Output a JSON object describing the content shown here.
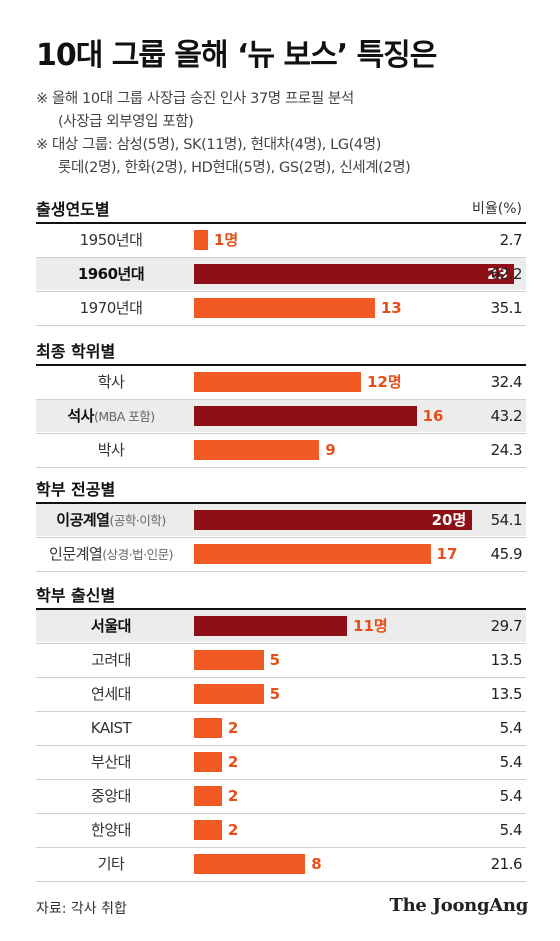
{
  "title": "10대 그룹 올해 ‘뉴 보스’ 특징은",
  "notes": [
    "※ 올해 10대 그룹 사장급 승진 인사 37명 프로필 분석",
    "(사장급 외부영입 포함)",
    "※ 대상 그룹: 삼성(5명), SK(11명), 현대차(4명), LG(4명)",
    "롯데(2명), 한화(2명), HD현대(5명), GS(2명), 신세계(2명)"
  ],
  "ratio_label": "비율(%)",
  "source": "자료: 각사 취합",
  "logo": "The JoongAng",
  "colors": {
    "bar": "#f15a22",
    "bar_highlight": "#8c1016",
    "row_highlight": "#ececec"
  },
  "chart_data": [
    {
      "type": "bar",
      "title": "출생연도별",
      "categories": [
        "1950년대",
        "1960년대",
        "1970년대"
      ],
      "sublabels": [
        "",
        "",
        ""
      ],
      "values": [
        1,
        23,
        13
      ],
      "value_labels": [
        "1명",
        "23",
        "13"
      ],
      "percent": [
        "2.7",
        "62.2",
        "35.1"
      ],
      "highlight": [
        false,
        true,
        false
      ],
      "label_inside": [
        false,
        true,
        false
      ]
    },
    {
      "type": "bar",
      "title": "최종 학위별",
      "categories": [
        "학사",
        "석사",
        "박사"
      ],
      "sublabels": [
        "",
        "(MBA 포함)",
        ""
      ],
      "values": [
        12,
        16,
        9
      ],
      "value_labels": [
        "12명",
        "16",
        "9"
      ],
      "percent": [
        "32.4",
        "43.2",
        "24.3"
      ],
      "highlight": [
        false,
        true,
        false
      ],
      "label_inside": [
        false,
        false,
        false
      ]
    },
    {
      "type": "bar",
      "title": "학부 전공별",
      "categories": [
        "이공계열",
        "인문계열"
      ],
      "sublabels": [
        "(공학·이학)",
        "(상경·법·인문)"
      ],
      "values": [
        20,
        17
      ],
      "value_labels": [
        "20명",
        "17"
      ],
      "percent": [
        "54.1",
        "45.9"
      ],
      "highlight": [
        true,
        false
      ],
      "label_inside": [
        true,
        false
      ]
    },
    {
      "type": "bar",
      "title": "학부 출신별",
      "categories": [
        "서울대",
        "고려대",
        "연세대",
        "KAIST",
        "부산대",
        "중앙대",
        "한양대",
        "기타"
      ],
      "sublabels": [
        "",
        "",
        "",
        "",
        "",
        "",
        "",
        ""
      ],
      "values": [
        11,
        5,
        5,
        2,
        2,
        2,
        2,
        8
      ],
      "value_labels": [
        "11명",
        "5",
        "5",
        "2",
        "2",
        "2",
        "2",
        "8"
      ],
      "percent": [
        "29.7",
        "13.5",
        "13.5",
        "5.4",
        "5.4",
        "5.4",
        "5.4",
        "21.6"
      ],
      "highlight": [
        true,
        false,
        false,
        false,
        false,
        false,
        false,
        false
      ],
      "label_inside": [
        false,
        false,
        false,
        false,
        false,
        false,
        false,
        false
      ]
    }
  ]
}
